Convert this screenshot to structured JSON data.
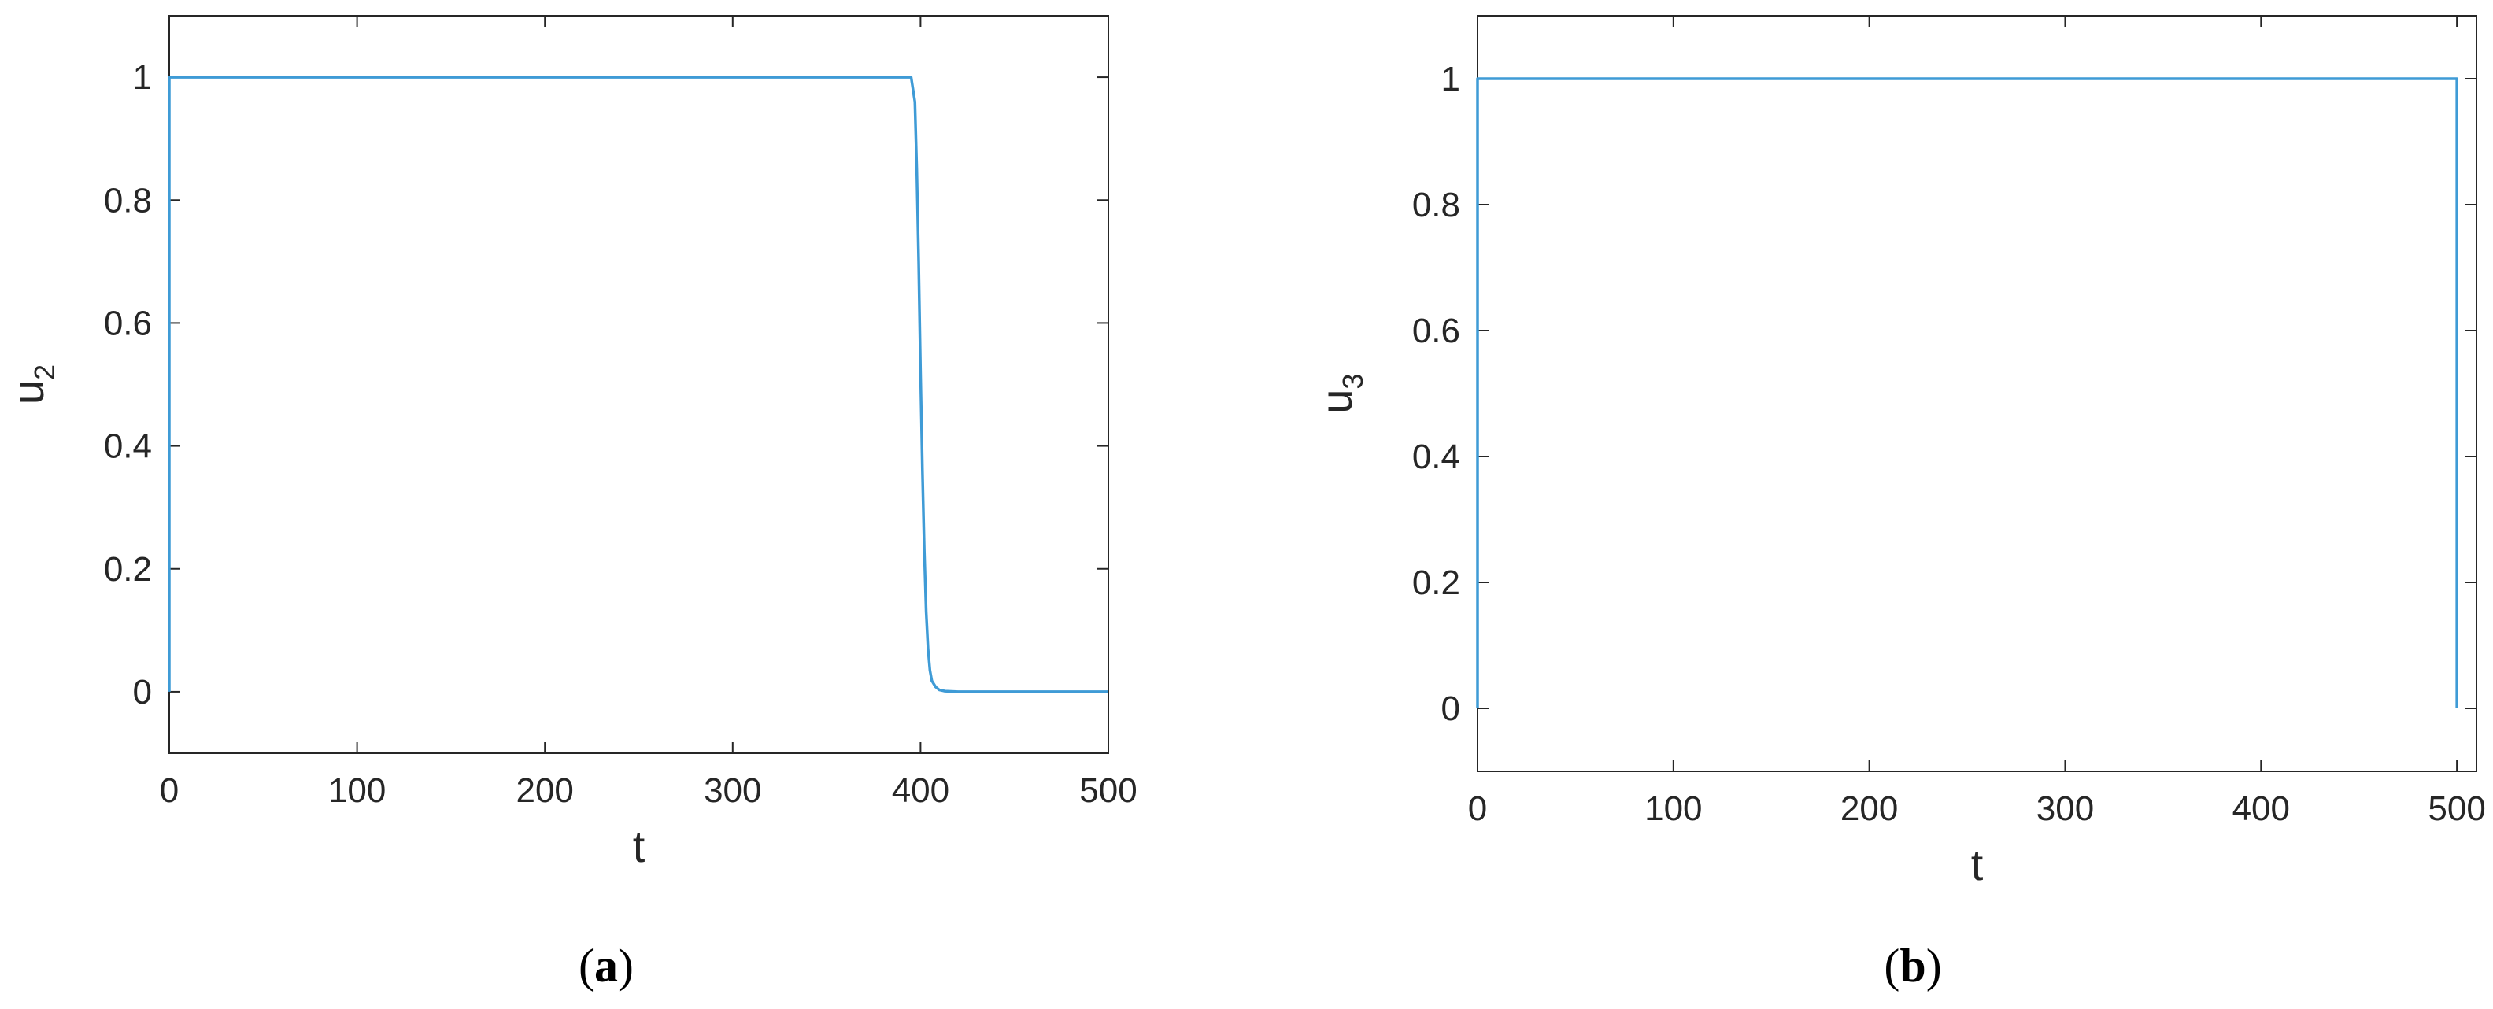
{
  "colors": {
    "series": "#3f9bd6",
    "axis": "#262626"
  },
  "chart_data": [
    {
      "type": "line",
      "caption": "(a)",
      "caption_letter": "a",
      "xlabel": "t",
      "ylabel_main": "u",
      "ylabel_sub": "2",
      "xlim": [
        0,
        500
      ],
      "ylim": [
        -0.1,
        1.1
      ],
      "xticks": [
        0,
        100,
        200,
        300,
        400,
        500
      ],
      "xtick_labels": [
        "0",
        "100",
        "200",
        "300",
        "400",
        "500"
      ],
      "yticks": [
        0,
        0.2,
        0.4,
        0.6,
        0.8,
        1
      ],
      "ytick_labels": [
        "0",
        "0.2",
        "0.4",
        "0.6",
        "0.8",
        "1"
      ],
      "grid": false,
      "series": [
        {
          "x": [
            0,
            0,
            2,
            390,
            395,
            397,
            398,
            399,
            400,
            401,
            402,
            403,
            404,
            405,
            406,
            408,
            410,
            413,
            420,
            500
          ],
          "y": [
            0,
            1,
            1,
            1,
            1,
            0.96,
            0.85,
            0.7,
            0.52,
            0.36,
            0.23,
            0.13,
            0.07,
            0.035,
            0.018,
            0.008,
            0.003,
            0.001,
            0,
            0
          ]
        }
      ]
    },
    {
      "type": "line",
      "caption": "(b)",
      "caption_letter": "b",
      "xlabel": "t",
      "ylabel_main": "u",
      "ylabel_sub": "3",
      "xlim": [
        0,
        510
      ],
      "ylim": [
        -0.1,
        1.1
      ],
      "xticks": [
        0,
        100,
        200,
        300,
        400,
        500
      ],
      "xtick_labels": [
        "0",
        "100",
        "200",
        "300",
        "400",
        "500"
      ],
      "yticks": [
        0,
        0.2,
        0.4,
        0.6,
        0.8,
        1
      ],
      "ytick_labels": [
        "0",
        "0.2",
        "0.4",
        "0.6",
        "0.8",
        "1"
      ],
      "grid": false,
      "series": [
        {
          "x": [
            0,
            0,
            1,
            498,
            499,
            500,
            500
          ],
          "y": [
            0,
            1,
            1,
            1,
            1,
            1,
            0
          ]
        }
      ]
    }
  ]
}
